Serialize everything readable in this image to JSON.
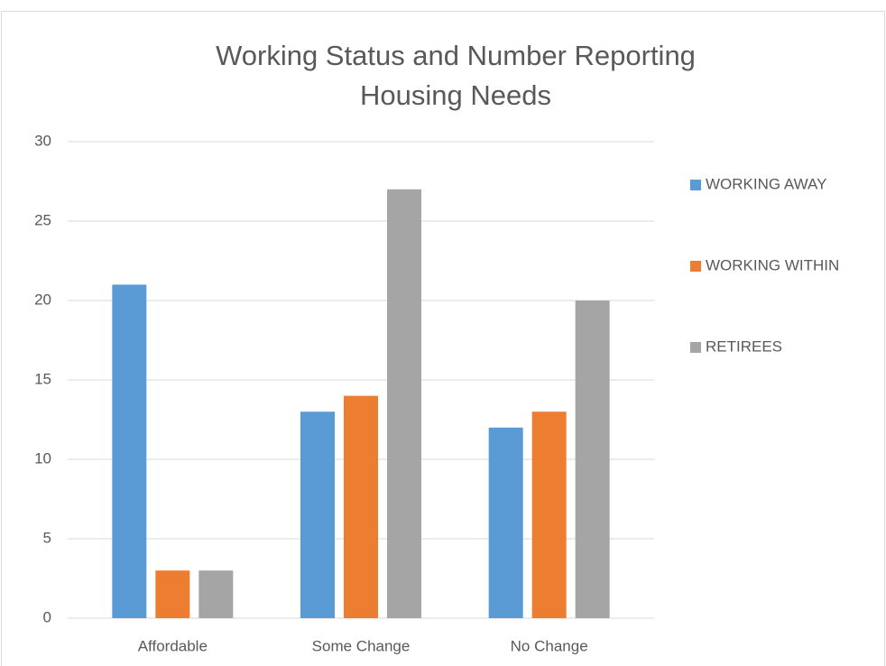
{
  "chart_data": {
    "type": "bar",
    "title": "Working Status and Number Reporting Housing Needs",
    "categories": [
      "Affordable",
      "Some Change",
      "No Change"
    ],
    "series": [
      {
        "name": "WORKING AWAY",
        "color": "#5b9bd5",
        "values": [
          21,
          13,
          12
        ]
      },
      {
        "name": "WORKING WITHIN",
        "color": "#ed7d31",
        "values": [
          3,
          14,
          13
        ]
      },
      {
        "name": "RETIREES",
        "color": "#a5a5a5",
        "values": [
          3,
          27,
          20
        ]
      }
    ],
    "ylim": [
      0,
      30
    ],
    "yticks": [
      0,
      5,
      10,
      15,
      20,
      25,
      30
    ],
    "grid": true,
    "legend": "right"
  }
}
